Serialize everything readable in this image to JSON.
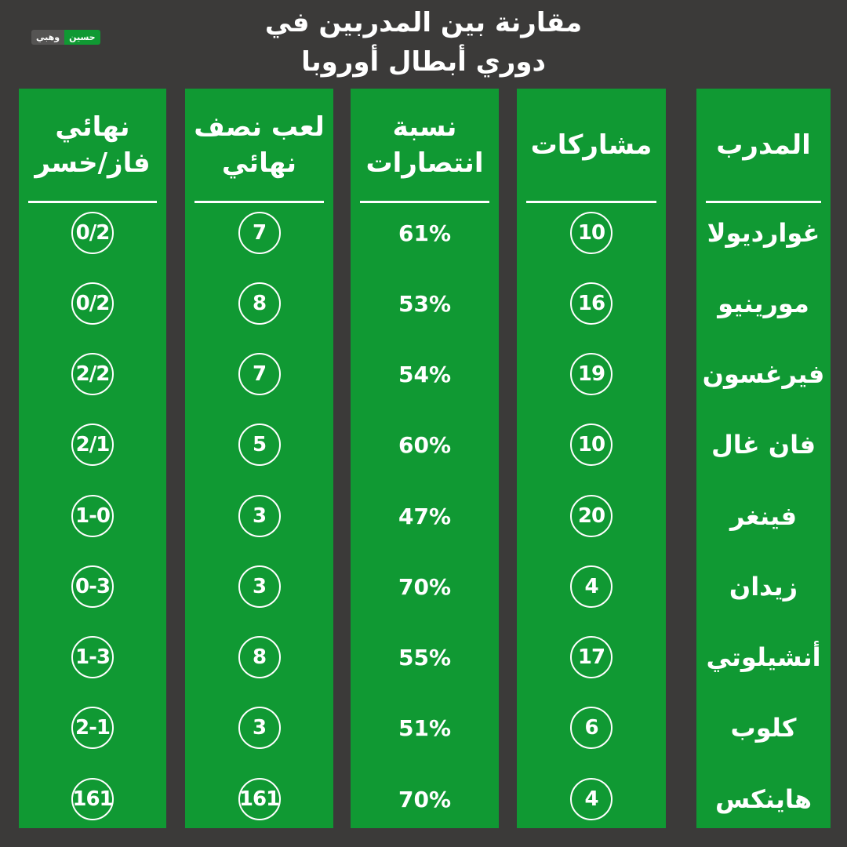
{
  "title": {
    "line1": "مقارنة بين المدربين في",
    "line2": "دوري أبطال أوروبا"
  },
  "logo": {
    "part1": "وهبي",
    "part2": "حسين"
  },
  "colors": {
    "background": "#3b3a39",
    "column": "#109933",
    "text": "#ffffff"
  },
  "headers": {
    "coach": "المدرب",
    "participations": "مشاركات",
    "win_rate": "نسبة\nانتصارات",
    "semifinals": "لعب نصف\nنهائي",
    "finals": "نهائي\nفاز/خسر"
  },
  "rows": [
    {
      "coach": "غوارديولا",
      "participations": "10",
      "win_rate": "61%",
      "semifinals": "7",
      "finals": "0/2"
    },
    {
      "coach": "مورينيو",
      "participations": "16",
      "win_rate": "53%",
      "semifinals": "8",
      "finals": "0/2"
    },
    {
      "coach": "فيرغسون",
      "participations": "19",
      "win_rate": "54%",
      "semifinals": "7",
      "finals": "2/2"
    },
    {
      "coach": "فان غال",
      "participations": "10",
      "win_rate": "60%",
      "semifinals": "5",
      "finals": "2/1"
    },
    {
      "coach": "فينغر",
      "participations": "20",
      "win_rate": "47%",
      "semifinals": "3",
      "finals": "1-0"
    },
    {
      "coach": "زيدان",
      "participations": "4",
      "win_rate": "70%",
      "semifinals": "3",
      "finals": "0-3"
    },
    {
      "coach": "أنشيلوتي",
      "participations": "17",
      "win_rate": "55%",
      "semifinals": "8",
      "finals": "1-3"
    },
    {
      "coach": "كلوب",
      "participations": "6",
      "win_rate": "51%",
      "semifinals": "3",
      "finals": "2-1"
    },
    {
      "coach": "هاينكس",
      "participations": "4",
      "win_rate": "70%",
      "semifinals": "161",
      "finals": "161"
    }
  ]
}
